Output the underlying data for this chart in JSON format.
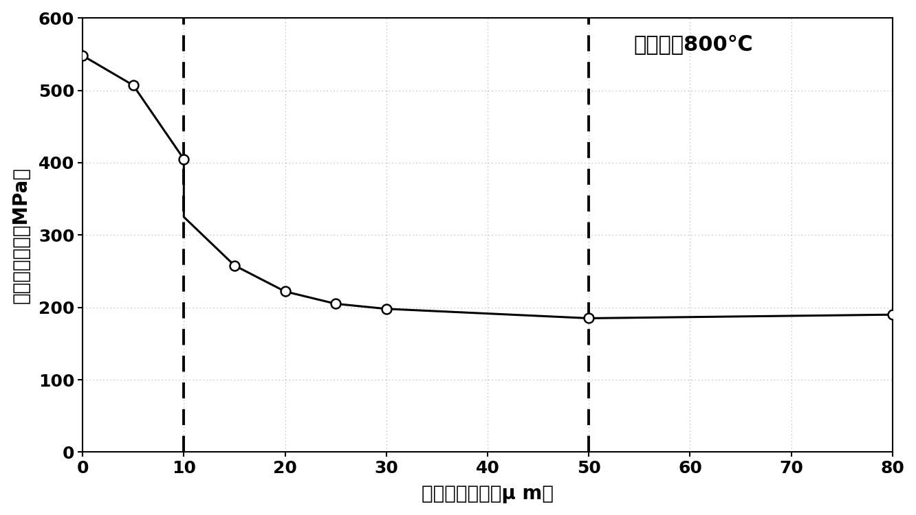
{
  "x_data": [
    0,
    5,
    10,
    10,
    15,
    20,
    25,
    30,
    50,
    80
  ],
  "y_data": [
    548,
    507,
    405,
    325,
    258,
    222,
    205,
    198,
    185,
    190
  ],
  "marker_x": [
    0,
    5,
    10,
    15,
    20,
    25,
    30,
    50,
    80
  ],
  "marker_y": [
    548,
    507,
    405,
    258,
    222,
    205,
    198,
    185,
    190
  ],
  "vline1_x": 10,
  "vline2_x": 50,
  "xlabel": "平均晶体粒径（μ m）",
  "ylabel": "平均变形抵抗（MPa）",
  "annotation": "轧制温度800℃",
  "xlim": [
    0,
    80
  ],
  "ylim": [
    0,
    600
  ],
  "xticks": [
    0,
    10,
    20,
    30,
    40,
    50,
    60,
    70,
    80
  ],
  "yticks": [
    0,
    100,
    200,
    300,
    400,
    500,
    600
  ],
  "line_color": "#000000",
  "marker_color": "#ffffff",
  "marker_edge_color": "#000000",
  "bg_color": "#ffffff",
  "grid_color": "#aaaaaa",
  "vline_color": "#000000",
  "annotation_fontsize": 22,
  "axis_label_fontsize": 20,
  "tick_fontsize": 18
}
